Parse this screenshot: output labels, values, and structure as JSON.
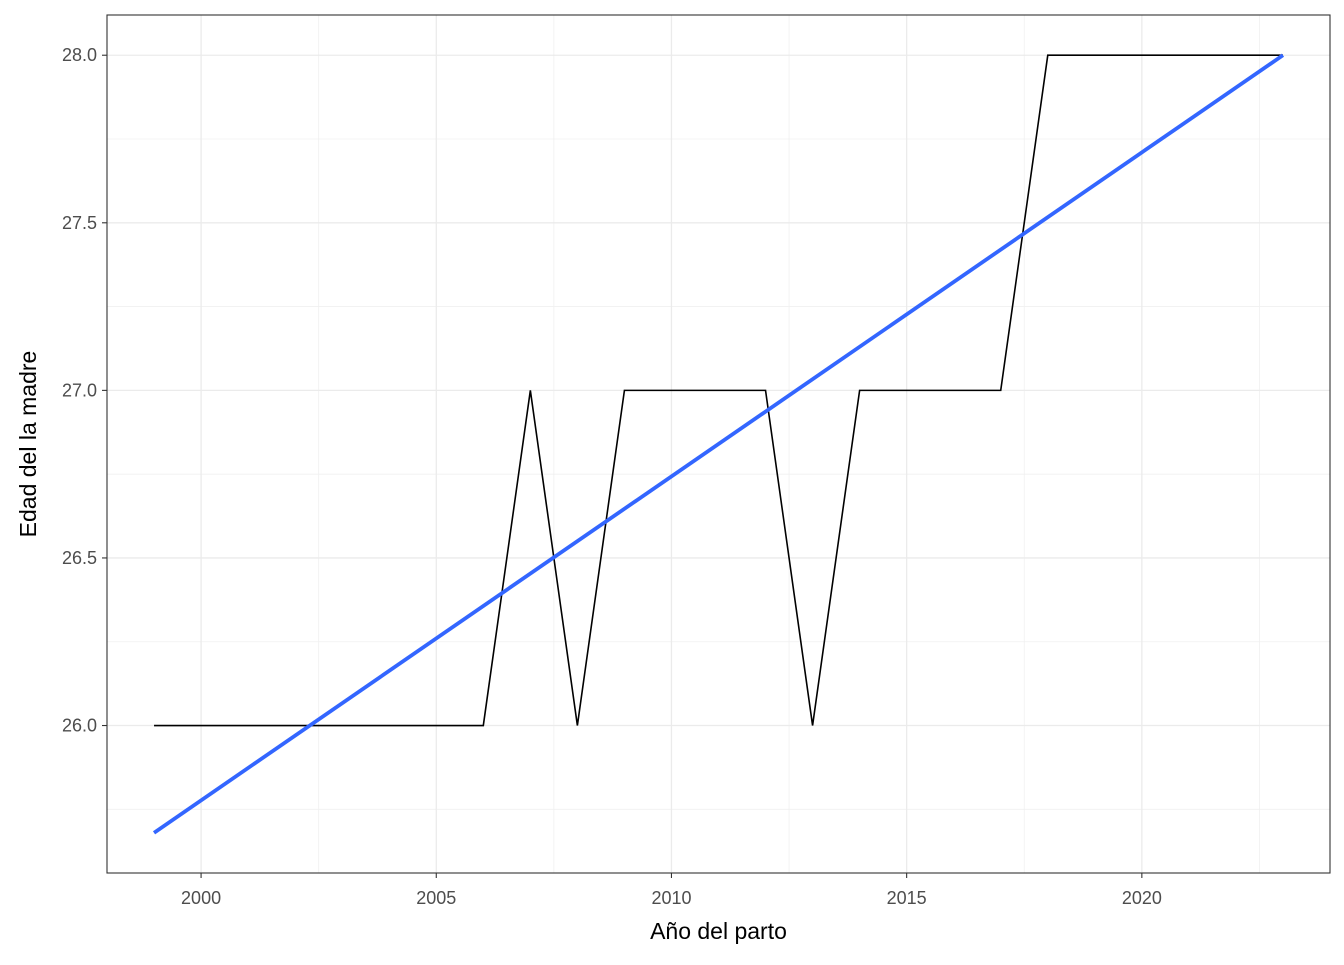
{
  "chart_data": {
    "type": "line",
    "title": "",
    "xlabel": "Año del parto",
    "ylabel": "Edad del la madre",
    "xlim": [
      1998.0,
      2024.0
    ],
    "ylim": [
      25.56,
      28.12
    ],
    "x_ticks": [
      2000,
      2005,
      2010,
      2015,
      2020
    ],
    "x_tick_labels": [
      "2000",
      "2005",
      "2010",
      "2015",
      "2020"
    ],
    "y_ticks": [
      26.0,
      26.5,
      27.0,
      27.5,
      28.0
    ],
    "y_tick_labels": [
      "26.0",
      "26.5",
      "27.0",
      "27.5",
      "28.0"
    ],
    "grid": true,
    "legend": "none",
    "series": [
      {
        "kind": "line",
        "color": "#000000",
        "x": [
          1999,
          2000,
          2001,
          2002,
          2003,
          2004,
          2005,
          2006,
          2007,
          2008,
          2009,
          2010,
          2011,
          2012,
          2013,
          2014,
          2015,
          2016,
          2017,
          2018,
          2019,
          2020,
          2021,
          2022,
          2023
        ],
        "y": [
          26,
          26,
          26,
          26,
          26,
          26,
          26,
          26,
          27,
          26,
          27,
          27,
          27,
          27,
          26,
          27,
          27,
          27,
          27,
          28,
          28,
          28,
          28,
          28,
          28
        ]
      },
      {
        "kind": "linear-trend",
        "color": "#3366ff",
        "x": [
          1999,
          2023
        ],
        "y": [
          25.68,
          28.0
        ]
      }
    ]
  }
}
